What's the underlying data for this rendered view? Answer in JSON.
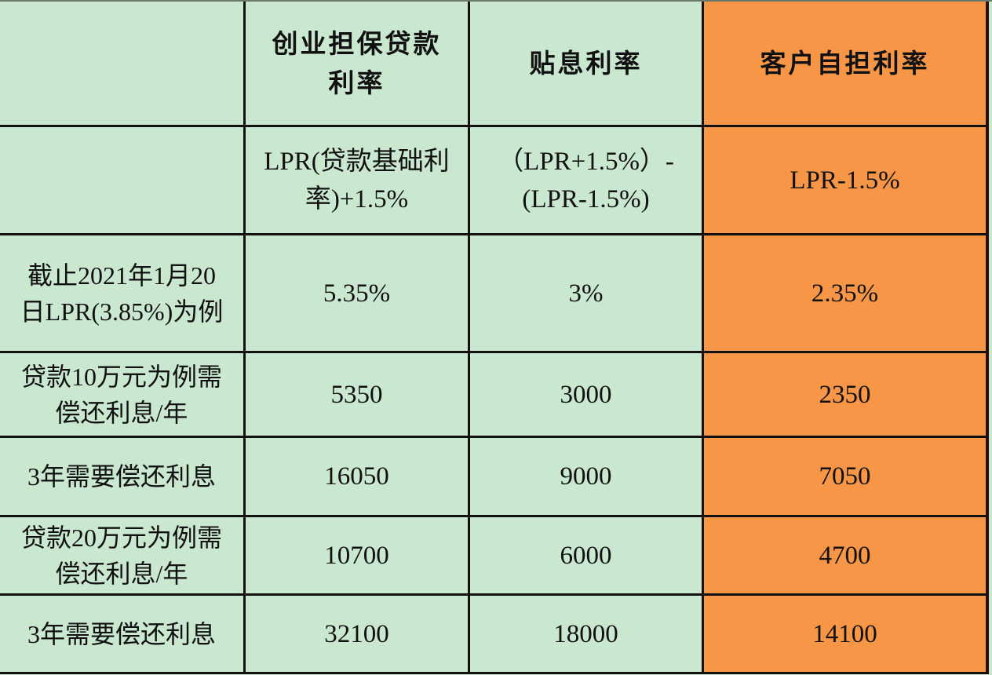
{
  "table": {
    "header": {
      "corner": "",
      "col1": [
        "创业担保贷款",
        "利率"
      ],
      "col2": "贴息利率",
      "col3": "客户自担利率"
    },
    "rows": [
      {
        "label": [
          "",
          ""
        ],
        "col1": [
          "LPR(贷款基础利",
          "率)+1.5%"
        ],
        "col2": [
          "（LPR+1.5%）-",
          "(LPR-1.5%)"
        ],
        "col3": "LPR-1.5%"
      },
      {
        "label": [
          "截止2021年1月20",
          "日LPR(3.85%)为例"
        ],
        "col1": "5.35%",
        "col2": "3%",
        "col3": "2.35%"
      },
      {
        "label": [
          "贷款10万元为例需",
          "偿还利息/年"
        ],
        "col1": "5350",
        "col2": "3000",
        "col3": "2350"
      },
      {
        "label": [
          "3年需要偿还利息",
          ""
        ],
        "col1": "16050",
        "col2": "9000",
        "col3": "7050"
      },
      {
        "label": [
          "贷款20万元为例需",
          "偿还利息/年"
        ],
        "col1": "10700",
        "col2": "6000",
        "col3": "4700"
      },
      {
        "label": [
          "3年需要偿还利息",
          ""
        ],
        "col1": "32100",
        "col2": "18000",
        "col3": "14100"
      }
    ]
  },
  "colors": {
    "green_cell": "#cae7d0",
    "orange_cell": "#f79646",
    "border": "#111111"
  }
}
